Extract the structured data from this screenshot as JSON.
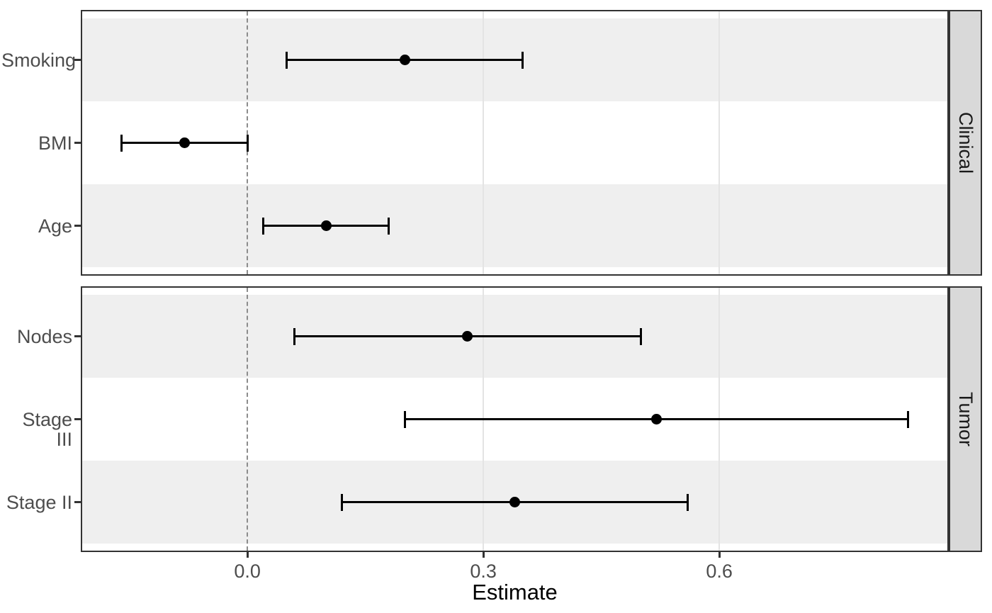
{
  "chart_data": {
    "type": "scatter",
    "subtype": "forest-pointrange",
    "title": "",
    "xlabel": "Estimate",
    "ylabel": "",
    "xlim": [
      -0.21,
      0.89
    ],
    "x_ticks": {
      "labels": [
        "0.0",
        "0.3",
        "0.6"
      ],
      "values": [
        0.0,
        0.3,
        0.6
      ]
    },
    "reference_line": {
      "value": 0.0,
      "style": "dashed"
    },
    "grid": "major-vertical",
    "legend": "none",
    "facets": [
      {
        "label": "Clinical",
        "rows": [
          {
            "category": "Smoking",
            "estimate": 0.2,
            "ci_low": 0.05,
            "ci_high": 0.35
          },
          {
            "category": "BMI",
            "estimate": -0.08,
            "ci_low": -0.16,
            "ci_high": 0.0
          },
          {
            "category": "Age",
            "estimate": 0.1,
            "ci_low": 0.02,
            "ci_high": 0.18
          }
        ]
      },
      {
        "label": "Tumor",
        "rows": [
          {
            "category": "Nodes",
            "estimate": 0.28,
            "ci_low": 0.06,
            "ci_high": 0.5
          },
          {
            "category": "Stage III",
            "estimate": 0.52,
            "ci_low": 0.2,
            "ci_high": 0.84
          },
          {
            "category": "Stage II",
            "estimate": 0.34,
            "ci_low": 0.12,
            "ci_high": 0.56
          }
        ]
      }
    ],
    "colors": {
      "point": "#000000",
      "error_bar": "#000000",
      "band_gray": "#efefef",
      "band_white": "#ffffff",
      "strip_fill": "#d9d9d9",
      "panel_border": "#333333",
      "reference_line": "#8c8c8c",
      "gridline": "#e4e4e4",
      "axis_text": "#4d4d4d",
      "axis_title": "#000000"
    }
  }
}
